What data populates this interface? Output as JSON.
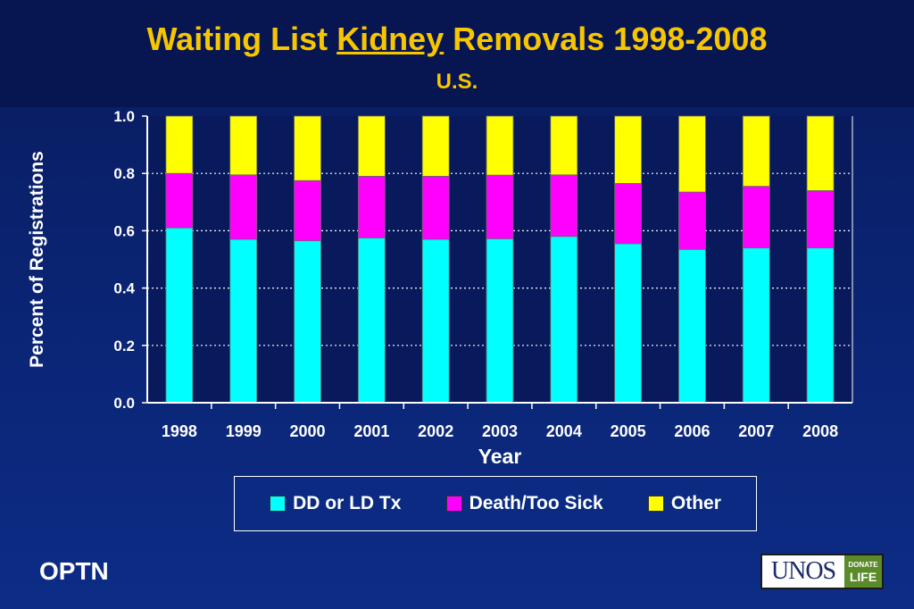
{
  "header": {
    "title_pre": "Waiting List ",
    "title_keyword": "Kidney",
    "title_post": " Removals 1998-2008",
    "subtitle": "U.S."
  },
  "footer": {
    "org": "OPTN",
    "logo_text": "UNOS",
    "badge_line1": "DONATE",
    "badge_line2": "LIFE"
  },
  "colors": {
    "background": "#0a2370",
    "title": "#f7c600",
    "plot_area": "#081a5c"
  },
  "chart_data": {
    "type": "bar",
    "stacked": true,
    "title": "Waiting List Kidney Removals 1998-2008",
    "subtitle": "U.S.",
    "xlabel": "Year",
    "ylabel": "Percent of Registrations",
    "ylim": [
      0,
      1.0
    ],
    "yticks": [
      "0.0",
      "0.2",
      "0.4",
      "0.6",
      "0.8",
      "1.0"
    ],
    "grid": "horizontal dotted",
    "legend_position": "bottom",
    "categories": [
      "1998",
      "1999",
      "2000",
      "2001",
      "2002",
      "2003",
      "2004",
      "2005",
      "2006",
      "2007",
      "2008"
    ],
    "series": [
      {
        "name": "DD or LD Tx",
        "color": "#00ffff",
        "values": [
          0.61,
          0.57,
          0.565,
          0.575,
          0.57,
          0.572,
          0.58,
          0.555,
          0.535,
          0.54,
          0.54
        ]
      },
      {
        "name": "Death/Too Sick",
        "color": "#ff00ff",
        "values": [
          0.19,
          0.225,
          0.21,
          0.215,
          0.22,
          0.222,
          0.215,
          0.21,
          0.2,
          0.215,
          0.2
        ]
      },
      {
        "name": "Other",
        "color": "#ffff00",
        "values": [
          0.2,
          0.205,
          0.225,
          0.21,
          0.21,
          0.206,
          0.205,
          0.235,
          0.265,
          0.245,
          0.26
        ]
      }
    ]
  }
}
